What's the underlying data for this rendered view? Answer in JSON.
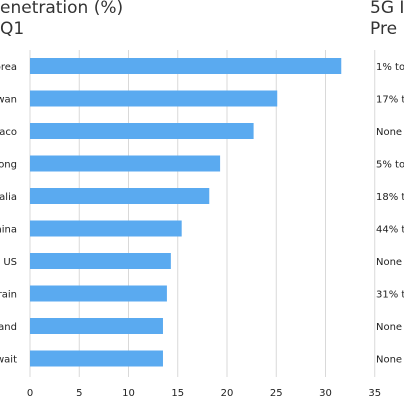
{
  "header": {
    "title_line1": "enetration (%)",
    "title_line2": "Q1",
    "right_title_line1": "5G I",
    "right_title_line2": "Pre"
  },
  "chart_data": {
    "type": "bar",
    "orientation": "horizontal",
    "title": "enetration (%) Q1",
    "categories": [
      "orea",
      "wan",
      "naco",
      "ong",
      "ralia",
      "hina",
      "US",
      "rain",
      "and",
      "wait"
    ],
    "values": [
      31.6,
      25.1,
      22.7,
      19.3,
      18.2,
      15.4,
      14.3,
      13.9,
      13.5,
      13.5
    ],
    "xlim": [
      0,
      35
    ],
    "xticks": [
      "0",
      "5",
      "10",
      "15",
      "20",
      "25",
      "30",
      "35"
    ],
    "grid": true,
    "bar_color": "#5aaaf0",
    "grid_color": "#d9d9d9"
  },
  "premium": {
    "labels": [
      "1% to",
      "17% t",
      "None",
      "5% to",
      "18% t",
      "44% t",
      "None",
      "31% t",
      "None",
      "None"
    ]
  }
}
